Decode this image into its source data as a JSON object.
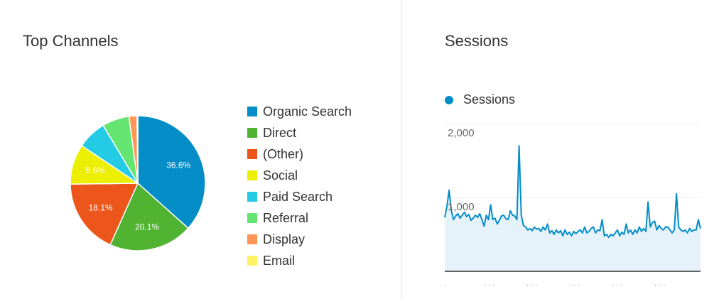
{
  "left_panel": {
    "title": "Top Channels"
  },
  "right_panel": {
    "title": "Sessions",
    "legend_label": "Sessions"
  },
  "colors": {
    "organic": "#058DC7",
    "direct": "#50B432",
    "other": "#ED561B",
    "social": "#EDEF00",
    "paid": "#24CBE5",
    "referral": "#64E572",
    "display": "#FF9655",
    "email": "#FFF263",
    "line": "#058DC7",
    "area": "#E6F2FA",
    "grid": "#eeeeee",
    "axis": "#333333"
  },
  "chart_data": [
    {
      "type": "pie",
      "title": "Top Channels",
      "slices": [
        {
          "name": "Organic Search",
          "value": 36.6,
          "label": "36.6%",
          "color": "#058DC7"
        },
        {
          "name": "Direct",
          "value": 20.1,
          "label": "20.1%",
          "color": "#50B432"
        },
        {
          "name": "(Other)",
          "value": 18.1,
          "label": "18.1%",
          "color": "#ED561B"
        },
        {
          "name": "Social",
          "value": 9.6,
          "label": "9.6%",
          "color": "#EDEF00"
        },
        {
          "name": "Paid Search",
          "value": 7.0,
          "label": "",
          "color": "#24CBE5"
        },
        {
          "name": "Referral",
          "value": 6.5,
          "label": "",
          "color": "#64E572"
        },
        {
          "name": "Display",
          "value": 1.9,
          "label": "",
          "color": "#FF9655"
        },
        {
          "name": "Email",
          "value": 0.2,
          "label": "",
          "color": "#FFF263"
        }
      ],
      "legend_position": "right"
    },
    {
      "type": "area",
      "title": "Sessions",
      "series": [
        {
          "name": "Sessions",
          "values": [
            730,
            880,
            1100,
            820,
            700,
            750,
            780,
            720,
            760,
            800,
            740,
            770,
            690,
            720,
            760,
            730,
            780,
            700,
            610,
            760,
            700,
            900,
            700,
            720,
            640,
            690,
            750,
            760,
            710,
            700,
            820,
            760,
            750,
            700,
            1700,
            760,
            620,
            600,
            560,
            580,
            550,
            600,
            570,
            580,
            540,
            600,
            560,
            640,
            520,
            550,
            500,
            560,
            520,
            550,
            480,
            560,
            500,
            530,
            480,
            540,
            510,
            540,
            560,
            520,
            600,
            520,
            540,
            580,
            600,
            520,
            560,
            550,
            700,
            480,
            500,
            460,
            500,
            480,
            520,
            560,
            480,
            530,
            500,
            640,
            520,
            560,
            500,
            560,
            520,
            600,
            540,
            580,
            540,
            940,
            600,
            660,
            680,
            560,
            620,
            580,
            560,
            600,
            600,
            560,
            520,
            560,
            1050,
            600,
            560,
            540,
            560,
            520,
            580,
            540,
            560,
            560,
            700,
            580
          ]
        }
      ],
      "y_ticks": [
        "2,000",
        "1,000"
      ],
      "ylim": [
        0,
        2000
      ],
      "x_tick_labels": [
        "·",
        "· · ·",
        "· · ·",
        "· · ·",
        "· · ·",
        "· · ·"
      ],
      "grid": true
    }
  ]
}
